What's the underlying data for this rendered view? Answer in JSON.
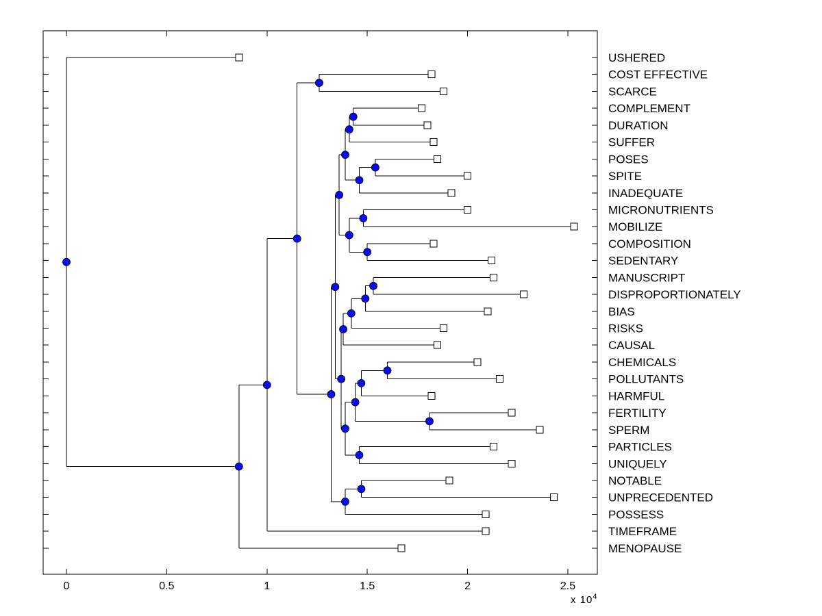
{
  "figure": {
    "background": "#ffffff",
    "frame_color": "#000000",
    "line_color": "#000000",
    "internal_node_fill": "#0a0af0",
    "internal_node_edge": "#000000",
    "leaf_marker_fill": "#ffffff",
    "leaf_marker_edge": "#000000",
    "axis": {
      "multiplier_base": "x 10",
      "multiplier_exponent": "4"
    }
  },
  "chart_data": {
    "type": "dendrogram",
    "subtype": "phylogenetic-tree-horizontal",
    "orientation": "left-to-right, leaf labels on right side",
    "grid": false,
    "x_axis": {
      "tick_values": [
        0,
        0.5,
        1,
        1.5,
        2,
        2.5
      ],
      "tick_labels": [
        "0",
        "0.5",
        "1",
        "1.5",
        "2",
        "2.5"
      ],
      "multiplier": "x 10^4",
      "range_shown": [
        -0.12,
        2.65
      ]
    },
    "units_note": "all x values in units of 10^4",
    "leaves": [
      {
        "label": "USHERED",
        "x": 0.86
      },
      {
        "label": "COST EFFECTIVE",
        "x": 1.82
      },
      {
        "label": "SCARCE",
        "x": 1.88
      },
      {
        "label": "COMPLEMENT",
        "x": 1.77
      },
      {
        "label": "DURATION",
        "x": 1.8
      },
      {
        "label": "SUFFER",
        "x": 1.83
      },
      {
        "label": "POSES",
        "x": 1.85
      },
      {
        "label": "SPITE",
        "x": 2.0
      },
      {
        "label": "INADEQUATE",
        "x": 1.92
      },
      {
        "label": "MICRONUTRIENTS",
        "x": 2.0
      },
      {
        "label": "MOBILIZE",
        "x": 2.53
      },
      {
        "label": "COMPOSITION",
        "x": 1.83
      },
      {
        "label": "SEDENTARY",
        "x": 2.12
      },
      {
        "label": "MANUSCRIPT",
        "x": 2.13
      },
      {
        "label": "DISPROPORTIONATELY",
        "x": 2.28
      },
      {
        "label": "BIAS",
        "x": 2.1
      },
      {
        "label": "RISKS",
        "x": 1.88
      },
      {
        "label": "CAUSAL",
        "x": 1.85
      },
      {
        "label": "CHEMICALS",
        "x": 2.05
      },
      {
        "label": "POLLUTANTS",
        "x": 2.16
      },
      {
        "label": "HARMFUL",
        "x": 1.82
      },
      {
        "label": "FERTILITY",
        "x": 2.22
      },
      {
        "label": "SPERM",
        "x": 2.36
      },
      {
        "label": "PARTICLES",
        "x": 2.13
      },
      {
        "label": "UNIQUELY",
        "x": 2.22
      },
      {
        "label": "NOTABLE",
        "x": 1.91
      },
      {
        "label": "UNPRECEDENTED",
        "x": 2.43
      },
      {
        "label": "POSSESS",
        "x": 2.09
      },
      {
        "label": "TIMEFRAME",
        "x": 2.09
      },
      {
        "label": "MENOPAUSE",
        "x": 1.67
      }
    ],
    "internal_nodes": [
      {
        "id": "n_cost_scarce",
        "x": 1.26,
        "children": [
          "COST EFFECTIVE",
          "SCARCE"
        ]
      },
      {
        "id": "n_compl_dur",
        "x": 1.43,
        "children": [
          "COMPLEMENT",
          "DURATION"
        ]
      },
      {
        "id": "n_cd_suffer",
        "x": 1.41,
        "children": [
          "n_compl_dur",
          "SUFFER"
        ]
      },
      {
        "id": "n_poses_spite",
        "x": 1.54,
        "children": [
          "POSES",
          "SPITE"
        ]
      },
      {
        "id": "n_ps_inad",
        "x": 1.46,
        "children": [
          "n_poses_spite",
          "INADEQUATE"
        ]
      },
      {
        "id": "n_cds_psi",
        "x": 1.39,
        "children": [
          "n_cd_suffer",
          "n_ps_inad"
        ]
      },
      {
        "id": "n_micro_mobil",
        "x": 1.48,
        "children": [
          "MICRONUTRIENTS",
          "MOBILIZE"
        ]
      },
      {
        "id": "n_comp_sed",
        "x": 1.5,
        "children": [
          "COMPOSITION",
          "SEDENTARY"
        ]
      },
      {
        "id": "n_mm_cs",
        "x": 1.41,
        "children": [
          "n_micro_mobil",
          "n_comp_sed"
        ]
      },
      {
        "id": "n_upper",
        "x": 1.36,
        "children": [
          "n_cds_psi",
          "n_mm_cs"
        ]
      },
      {
        "id": "n_manu_disp",
        "x": 1.53,
        "children": [
          "MANUSCRIPT",
          "DISPROPORTIONATELY"
        ]
      },
      {
        "id": "n_md_bias",
        "x": 1.49,
        "children": [
          "n_manu_disp",
          "BIAS"
        ]
      },
      {
        "id": "n_mdb_risks",
        "x": 1.42,
        "children": [
          "n_md_bias",
          "RISKS"
        ]
      },
      {
        "id": "n_mdbr_causal",
        "x": 1.38,
        "children": [
          "n_mdb_risks",
          "CAUSAL"
        ]
      },
      {
        "id": "n_chem_poll",
        "x": 1.6,
        "children": [
          "CHEMICALS",
          "POLLUTANTS"
        ]
      },
      {
        "id": "n_cp_harm",
        "x": 1.47,
        "children": [
          "n_chem_poll",
          "HARMFUL"
        ]
      },
      {
        "id": "n_fert_sperm",
        "x": 1.81,
        "children": [
          "FERTILITY",
          "SPERM"
        ]
      },
      {
        "id": "n_cph_fs",
        "x": 1.44,
        "children": [
          "n_cp_harm",
          "n_fert_sperm"
        ]
      },
      {
        "id": "n_part_uniq",
        "x": 1.46,
        "children": [
          "PARTICLES",
          "UNIQUELY"
        ]
      },
      {
        "id": "n_w",
        "x": 1.39,
        "children": [
          "n_cph_fs",
          "n_part_uniq"
        ]
      },
      {
        "id": "n_t",
        "x": 1.37,
        "children": [
          "n_mdbr_causal",
          "n_w"
        ]
      },
      {
        "id": "n_k",
        "x": 1.34,
        "children": [
          "n_upper",
          "n_t"
        ]
      },
      {
        "id": "n_not_unprec",
        "x": 1.47,
        "children": [
          "NOTABLE",
          "UNPRECEDENTED"
        ]
      },
      {
        "id": "n_nu_possess",
        "x": 1.39,
        "children": [
          "n_not_unprec",
          "POSSESS"
        ]
      },
      {
        "id": "n_u",
        "x": 1.32,
        "children": [
          "n_k",
          "n_nu_possess"
        ]
      },
      {
        "id": "n_j",
        "x": 1.15,
        "children": [
          "n_cost_scarce",
          "n_u"
        ]
      },
      {
        "id": "n_z",
        "x": 1.0,
        "children": [
          "n_j",
          "TIMEFRAME"
        ]
      },
      {
        "id": "n_y",
        "x": 0.86,
        "children": [
          "n_z",
          "MENOPAUSE"
        ]
      },
      {
        "id": "root",
        "x": 0.0,
        "children": [
          "USHERED",
          "n_y"
        ]
      }
    ],
    "root_id": "root"
  }
}
